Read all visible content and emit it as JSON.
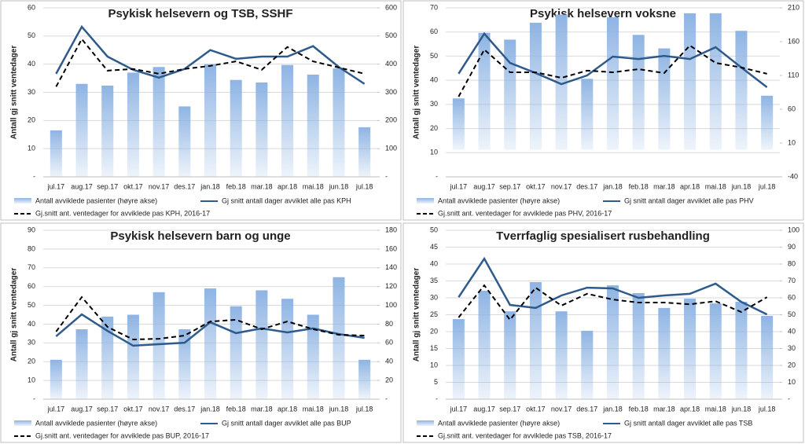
{
  "chart_data": [
    {
      "type": "combo",
      "title": "Psykisk helsevern og TSB, SSHF",
      "y_label": "Antall gj snitt ventedager",
      "categories": [
        "jul.17",
        "aug.17",
        "sep.17",
        "okt.17",
        "nov.17",
        "des.17",
        "jan.18",
        "feb.18",
        "mar.18",
        "apr.18",
        "mai.18",
        "jun.18",
        "jul.18"
      ],
      "ylim": [
        0,
        60
      ],
      "yticks": [
        {
          "value": 0,
          "label": "-"
        },
        10,
        20,
        30,
        40,
        50,
        60
      ],
      "y2lim": [
        0,
        600
      ],
      "y2ticks": [
        {
          "value": 0,
          "label": "-"
        },
        100,
        200,
        300,
        400,
        500,
        600
      ],
      "grid": true,
      "series": [
        {
          "name": "Antall avviklede pasienter (høyre akse)",
          "type": "bar",
          "axis": "y2",
          "color": "#8eb4e3",
          "values": [
            165,
            330,
            324,
            370,
            390,
            250,
            400,
            344,
            335,
            397,
            363,
            385,
            176
          ]
        },
        {
          "name": "Gj snitt antall dager avviklet alle pas KPH",
          "type": "line",
          "color": "#2e5a8c",
          "values": [
            36.6,
            53.3,
            42.7,
            38,
            35.2,
            38.3,
            45,
            41.9,
            42.7,
            42.7,
            46.4,
            39,
            33
          ]
        },
        {
          "name": "Gj.snitt ant. ventedager for avviklede pas KPH, 2016-17",
          "type": "line",
          "dashed": true,
          "color": "#000000",
          "values": [
            32,
            48.9,
            37.7,
            38.3,
            36.6,
            38.3,
            39.4,
            41,
            38,
            46.1,
            41,
            38.8,
            36.6
          ]
        }
      ]
    },
    {
      "type": "combo",
      "title": "Psykisk helsevern voksne",
      "y_label": "Antall gj snitt ventedager",
      "categories": [
        "jul.17",
        "aug.17",
        "sep.17",
        "okt.17",
        "nov.17",
        "des.17",
        "jan.18",
        "feb.18",
        "mar.18",
        "apr.18",
        "mai.18",
        "jun.18",
        "jul.18"
      ],
      "ylim": [
        0,
        70
      ],
      "yticks": [
        {
          "value": 0,
          "label": "-"
        },
        10,
        20,
        30,
        40,
        50,
        60,
        70
      ],
      "y2lim": [
        -40,
        210
      ],
      "y2ticks": [
        -40,
        10,
        60,
        110,
        160,
        210
      ],
      "grid": true,
      "series": [
        {
          "name": "Antall avviklede pasienter (høyre akse)",
          "type": "bar",
          "axis": "y2",
          "color": "#8eb4e3",
          "values": [
            76,
            173,
            163,
            188,
            200,
            105,
            196,
            170,
            150,
            202,
            202,
            176,
            80
          ]
        },
        {
          "name": "Gj snitt antall dager avviklet alle pas PHV",
          "type": "line",
          "color": "#2e5a8c",
          "values": [
            42.7,
            59.3,
            47.2,
            43,
            38.4,
            42,
            49.8,
            48.8,
            50.1,
            48.8,
            53.7,
            45.3,
            37.1
          ]
        },
        {
          "name": "Gj.snitt ant. ventedager for avviklede pas PHV, 2016-17",
          "type": "line",
          "dashed": true,
          "color": "#000000",
          "values": [
            33.2,
            52.7,
            43.3,
            43.3,
            41,
            44,
            43.3,
            44.6,
            43,
            54.4,
            47.2,
            45.3,
            42.7
          ]
        }
      ]
    },
    {
      "type": "combo",
      "title": "Psykisk helsevern barn og unge",
      "y_label": "Antall gj snitt ventedager",
      "categories": [
        "jul.17",
        "aug.17",
        "sep.17",
        "okt.17",
        "nov.17",
        "des.17",
        "jan.18",
        "feb.18",
        "mar.18",
        "apr.18",
        "mai.18",
        "jun.18",
        "jul.18"
      ],
      "ylim": [
        0,
        90
      ],
      "yticks": [
        {
          "value": 0,
          "label": "-"
        },
        10,
        20,
        30,
        40,
        50,
        60,
        70,
        80,
        90
      ],
      "y2lim": [
        0,
        180
      ],
      "y2ticks": [
        {
          "value": 0,
          "label": "-"
        },
        20,
        40,
        60,
        80,
        100,
        120,
        140,
        160,
        180
      ],
      "grid": true,
      "series": [
        {
          "name": "Antall avviklede pasienter (høyre akse)",
          "type": "bar",
          "axis": "y2",
          "color": "#8eb4e3",
          "values": [
            42,
            74.5,
            88,
            90,
            114,
            74.5,
            118,
            99,
            116,
            107,
            90,
            130,
            42
          ]
        },
        {
          "name": "Gj snitt antall dager avviklet alle pas BUP",
          "type": "line",
          "color": "#2e5a8c",
          "values": [
            33.5,
            45.2,
            36.4,
            28.5,
            29.3,
            30.1,
            41,
            35.2,
            37.7,
            35.6,
            37.7,
            34.7,
            32.7
          ]
        },
        {
          "name": "Gj.snitt ant. ventedager for avviklede pas BUP, 2016-17",
          "type": "line",
          "dashed": true,
          "color": "#000000",
          "values": [
            36,
            54.4,
            38.5,
            31.8,
            32.2,
            33.9,
            41.4,
            42.3,
            37.3,
            41.4,
            37.3,
            34.3,
            33.9
          ]
        }
      ]
    },
    {
      "type": "combo",
      "title": "Tverrfaglig spesialisert rusbehandling",
      "y_label": "Antall gj snitt ventedager",
      "categories": [
        "jul.17",
        "aug.17",
        "sep.17",
        "okt.17",
        "nov.17",
        "des.17",
        "jan.18",
        "feb.18",
        "mar.18",
        "apr.18",
        "mai.18",
        "jun.18",
        "jul.18"
      ],
      "ylim": [
        0,
        50
      ],
      "yticks": [
        {
          "value": 0,
          "label": "-"
        },
        5,
        10,
        15,
        20,
        25,
        30,
        35,
        40,
        45,
        50
      ],
      "y2lim": [
        0,
        100
      ],
      "y2ticks": [
        {
          "value": 0,
          "label": "-"
        },
        10,
        20,
        30,
        40,
        50,
        60,
        70,
        80,
        90,
        100
      ],
      "grid": true,
      "series": [
        {
          "name": "Antall avviklede pasienter (høyre akse)",
          "type": "bar",
          "axis": "y2",
          "color": "#8eb4e3",
          "values": [
            47.4,
            64.2,
            52,
            69.3,
            52,
            40.5,
            67.4,
            62.8,
            54,
            59.5,
            56.7,
            57.7,
            49.3
          ]
        },
        {
          "name": "Gj snitt antall dager avviklet alle pas TSB",
          "type": "line",
          "color": "#2e5a8c",
          "values": [
            30.2,
            41.6,
            27.9,
            27,
            30.7,
            33,
            32.8,
            30,
            30.7,
            31.2,
            34.2,
            28.8,
            25.1
          ]
        },
        {
          "name": "Gj.snitt ant. ventedager for avviklede pas TSB, 2016-17",
          "type": "line",
          "dashed": true,
          "color": "#000000",
          "values": [
            24.2,
            33.7,
            23.5,
            33,
            27.7,
            31.2,
            29.5,
            28.6,
            28.6,
            28.1,
            29,
            25.8,
            30.2
          ]
        }
      ]
    }
  ]
}
